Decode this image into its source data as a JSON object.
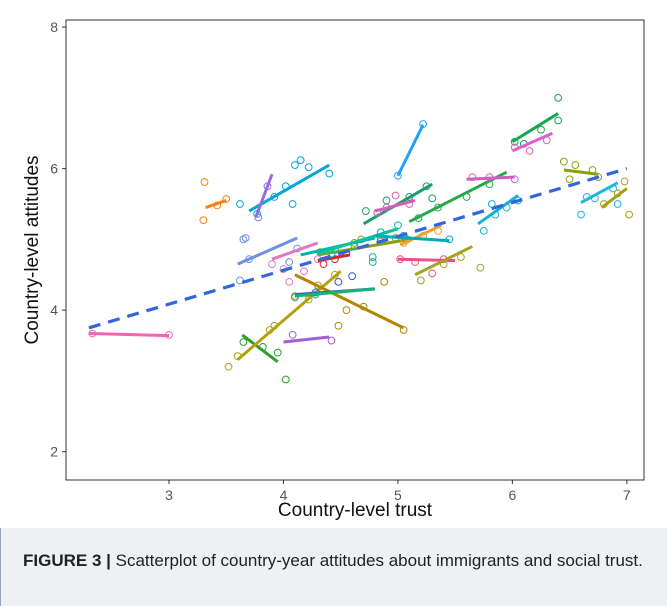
{
  "chart_data": {
    "type": "scatter",
    "xlabel": "Country-level trust",
    "ylabel": "Country-level attitudes",
    "xlim": [
      2.1,
      7.15
    ],
    "ylim": [
      1.6,
      8.1
    ],
    "xticks": [
      3,
      4,
      5,
      6,
      7
    ],
    "yticks": [
      2,
      4,
      6,
      8
    ],
    "grid": false,
    "legend": "none",
    "overall_trend": {
      "x1": 2.3,
      "y1": 3.75,
      "x2": 7.0,
      "y2": 6.0,
      "color": "#3366dd",
      "style": "dashed"
    },
    "series": [
      {
        "color": "#f064b4",
        "line": [
          2.3,
          3.67,
          3.0,
          3.64
        ],
        "points": [
          [
            2.33,
            3.67
          ],
          [
            3.0,
            3.65
          ]
        ]
      },
      {
        "color": "#ff7f0e",
        "line": [
          3.32,
          5.45,
          3.5,
          5.55
        ],
        "points": [
          [
            3.31,
            5.81
          ],
          [
            3.3,
            5.27
          ],
          [
            3.5,
            5.57
          ],
          [
            3.42,
            5.48
          ]
        ]
      },
      {
        "color": "#00a6d6",
        "line": [
          3.7,
          5.4,
          4.4,
          6.05
        ],
        "points": [
          [
            3.62,
            5.5
          ],
          [
            3.77,
            5.36
          ],
          [
            4.02,
            5.75
          ],
          [
            4.1,
            6.05
          ],
          [
            4.15,
            6.12
          ],
          [
            4.22,
            6.02
          ],
          [
            4.4,
            5.93
          ],
          [
            4.08,
            5.5
          ],
          [
            3.92,
            5.6
          ]
        ]
      },
      {
        "color": "#9c6ade",
        "line": [
          3.76,
          5.32,
          3.9,
          5.92
        ],
        "points": [
          [
            3.78,
            5.31
          ],
          [
            3.86,
            5.75
          ]
        ]
      },
      {
        "color": "#6f8fe8",
        "line": [
          3.6,
          4.65,
          4.12,
          5.02
        ],
        "points": [
          [
            3.62,
            4.42
          ],
          [
            3.65,
            5.0
          ],
          [
            3.67,
            5.02
          ],
          [
            3.7,
            4.72
          ],
          [
            4.12,
            4.87
          ],
          [
            4.05,
            4.68
          ]
        ]
      },
      {
        "color": "#2ca02c",
        "line": [
          3.64,
          3.65,
          3.95,
          3.27
        ],
        "points": [
          [
            3.65,
            3.55
          ],
          [
            3.82,
            3.48
          ],
          [
            3.95,
            3.4
          ],
          [
            4.02,
            3.02
          ]
        ]
      },
      {
        "color": "#e377c2",
        "line": [
          3.9,
          4.72,
          4.3,
          4.95
        ],
        "points": [
          [
            3.9,
            4.65
          ],
          [
            4.0,
            4.58
          ],
          [
            4.05,
            4.4
          ],
          [
            4.18,
            4.55
          ],
          [
            4.3,
            4.72
          ]
        ]
      },
      {
        "color": "#b5a00e",
        "line": [
          3.6,
          3.3,
          4.5,
          4.55
        ],
        "points": [
          [
            3.52,
            3.2
          ],
          [
            3.6,
            3.35
          ],
          [
            3.88,
            3.72
          ],
          [
            3.92,
            3.78
          ],
          [
            4.22,
            4.15
          ],
          [
            4.1,
            4.2
          ],
          [
            4.3,
            4.35
          ],
          [
            4.45,
            4.5
          ]
        ]
      },
      {
        "color": "#d62728",
        "line": [
          4.3,
          4.7,
          4.58,
          4.78
        ],
        "points": [
          [
            4.35,
            4.65
          ],
          [
            4.45,
            4.72
          ],
          [
            4.55,
            4.81
          ]
        ]
      },
      {
        "color": "#b38600",
        "line": [
          4.1,
          4.5,
          5.05,
          3.75
        ],
        "points": [
          [
            4.48,
            3.78
          ],
          [
            4.55,
            4.0
          ],
          [
            4.88,
            4.4
          ],
          [
            5.05,
            3.72
          ],
          [
            4.7,
            4.05
          ]
        ]
      },
      {
        "color": "#3355dd",
        "line": [
          4.1,
          4.22,
          4.8,
          4.3
        ],
        "points": [
          [
            4.28,
            4.25
          ],
          [
            4.48,
            4.4
          ],
          [
            4.6,
            4.48
          ]
        ]
      },
      {
        "color": "#a05fd6",
        "line": [
          4.0,
          3.55,
          4.4,
          3.62
        ],
        "points": [
          [
            4.08,
            3.65
          ],
          [
            4.42,
            3.57
          ]
        ]
      },
      {
        "color": "#19b07a",
        "line": [
          4.1,
          4.2,
          4.8,
          4.3
        ],
        "points": [
          [
            4.1,
            4.18
          ],
          [
            4.28,
            4.22
          ],
          [
            4.78,
            4.68
          ]
        ]
      },
      {
        "color": "#8c9e10",
        "line": [
          4.3,
          4.78,
          5.1,
          5.0
        ],
        "points": [
          [
            4.32,
            4.82
          ],
          [
            4.62,
            4.95
          ],
          [
            4.68,
            5.0
          ],
          [
            4.85,
            4.97
          ],
          [
            4.98,
            5.02
          ],
          [
            5.08,
            5.0
          ]
        ]
      },
      {
        "color": "#00b3b3",
        "line": [
          4.15,
          4.78,
          4.8,
          5.02
        ],
        "points": [
          [
            4.45,
            4.85
          ],
          [
            4.62,
            4.9
          ],
          [
            4.78,
            4.75
          ]
        ]
      },
      {
        "color": "#1b9e6b",
        "line": [
          4.7,
          5.22,
          5.3,
          5.78
        ],
        "points": [
          [
            4.72,
            5.4
          ],
          [
            4.9,
            5.55
          ],
          [
            5.1,
            5.6
          ],
          [
            5.25,
            5.75
          ],
          [
            5.3,
            5.58
          ]
        ]
      },
      {
        "color": "#d35fb7",
        "line": [
          4.8,
          5.4,
          5.15,
          5.55
        ],
        "points": [
          [
            4.82,
            5.38
          ],
          [
            4.9,
            5.45
          ],
          [
            4.98,
            5.62
          ],
          [
            5.1,
            5.5
          ]
        ]
      },
      {
        "color": "#00c2a0",
        "line": [
          4.3,
          4.8,
          5.0,
          5.15
        ],
        "points": [
          [
            4.42,
            4.8
          ],
          [
            4.85,
            5.0
          ],
          [
            5.0,
            5.2
          ]
        ]
      },
      {
        "color": "#f0a030",
        "line": [
          5.02,
          4.92,
          5.38,
          5.2
        ],
        "points": [
          [
            5.05,
            4.95
          ],
          [
            5.22,
            5.05
          ],
          [
            5.35,
            5.12
          ]
        ]
      },
      {
        "color": "#e8508b",
        "line": [
          5.0,
          4.72,
          5.5,
          4.7
        ],
        "points": [
          [
            5.02,
            4.72
          ],
          [
            5.15,
            4.68
          ],
          [
            5.3,
            4.52
          ],
          [
            5.4,
            4.72
          ]
        ]
      },
      {
        "color": "#a3a520",
        "line": [
          5.15,
          4.5,
          5.65,
          4.9
        ],
        "points": [
          [
            5.2,
            4.42
          ],
          [
            5.4,
            4.65
          ],
          [
            5.55,
            4.75
          ],
          [
            5.72,
            4.6
          ]
        ]
      },
      {
        "color": "#00a9b8",
        "line": [
          4.8,
          5.05,
          5.45,
          4.98
        ],
        "points": [
          [
            4.85,
            5.1
          ],
          [
            5.05,
            5.05
          ],
          [
            5.45,
            5.0
          ]
        ]
      },
      {
        "color": "#24a84a",
        "line": [
          5.1,
          5.25,
          5.95,
          5.95
        ],
        "points": [
          [
            5.18,
            5.3
          ],
          [
            5.35,
            5.45
          ],
          [
            5.6,
            5.6
          ],
          [
            5.8,
            5.78
          ]
        ]
      },
      {
        "color": "#1aa3ff",
        "line": [
          5.0,
          5.9,
          5.22,
          6.62
        ],
        "points": [
          [
            5.0,
            5.9
          ],
          [
            5.22,
            6.63
          ]
        ]
      },
      {
        "color": "#cf5ec4",
        "line": [
          5.6,
          5.85,
          6.02,
          5.88
        ],
        "points": [
          [
            5.65,
            5.88
          ],
          [
            5.8,
            5.88
          ],
          [
            6.02,
            5.85
          ]
        ]
      },
      {
        "color": "#16b0d6",
        "line": [
          5.7,
          5.22,
          6.05,
          5.62
        ],
        "points": [
          [
            5.75,
            5.12
          ],
          [
            5.85,
            5.35
          ],
          [
            5.95,
            5.45
          ],
          [
            6.05,
            5.55
          ],
          [
            5.82,
            5.5
          ]
        ]
      },
      {
        "color": "#13a84c",
        "line": [
          6.0,
          6.38,
          6.4,
          6.78
        ],
        "points": [
          [
            6.02,
            6.38
          ],
          [
            6.1,
            6.35
          ],
          [
            6.25,
            6.55
          ],
          [
            6.4,
            6.68
          ],
          [
            6.4,
            7.0
          ]
        ]
      },
      {
        "color": "#e05fd0",
        "line": [
          6.0,
          6.25,
          6.35,
          6.5
        ],
        "points": [
          [
            6.02,
            6.3
          ],
          [
            6.15,
            6.25
          ],
          [
            6.3,
            6.4
          ]
        ]
      },
      {
        "color": "#8aa10c",
        "line": [
          6.45,
          5.98,
          6.75,
          5.92
        ],
        "points": [
          [
            6.45,
            6.1
          ],
          [
            6.5,
            5.85
          ],
          [
            6.55,
            6.05
          ],
          [
            6.7,
            5.98
          ],
          [
            6.75,
            5.88
          ]
        ]
      },
      {
        "color": "#1ab6e0",
        "line": [
          6.6,
          5.52,
          6.92,
          5.8
        ],
        "points": [
          [
            6.6,
            5.35
          ],
          [
            6.65,
            5.6
          ],
          [
            6.72,
            5.58
          ],
          [
            6.88,
            5.72
          ],
          [
            6.92,
            5.5
          ]
        ]
      },
      {
        "color": "#a8a015",
        "line": [
          6.78,
          5.45,
          7.0,
          5.72
        ],
        "points": [
          [
            6.8,
            5.5
          ],
          [
            6.92,
            5.65
          ],
          [
            6.98,
            5.82
          ],
          [
            7.02,
            5.35
          ]
        ]
      }
    ]
  },
  "caption": {
    "figure_label": "FIGURE 3 |",
    "text": "Scatterplot of country-year attitudes about immigrants and social trust."
  }
}
